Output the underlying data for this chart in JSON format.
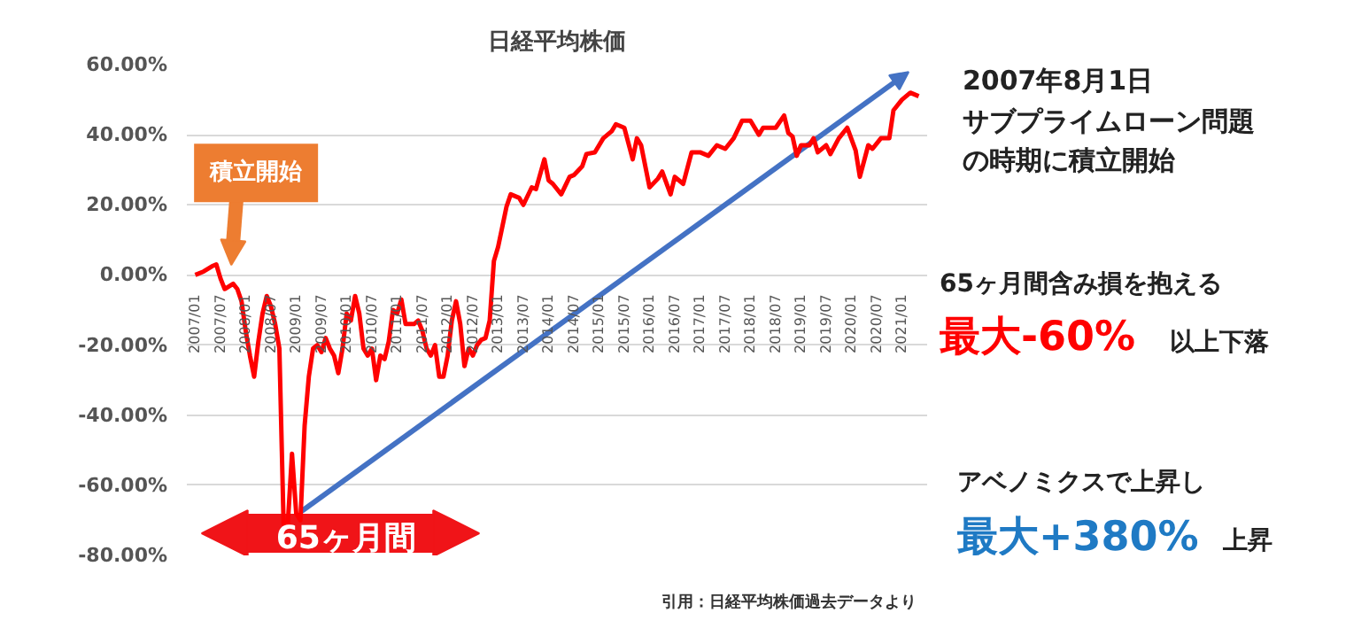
{
  "chart_data": {
    "type": "line",
    "title": "日経平均株価",
    "xlim": [
      "2006-11",
      "2021-07"
    ],
    "ylim": [
      -80,
      60
    ],
    "xticks": [
      {
        "value": "2007-01",
        "label": "2007/01"
      },
      {
        "value": "2007-07",
        "label": "2007/07"
      },
      {
        "value": "2008-01",
        "label": "2008/01"
      },
      {
        "value": "2008-07",
        "label": "2008/07"
      },
      {
        "value": "2009-01",
        "label": "2009/01"
      },
      {
        "value": "2009-07",
        "label": "2009/07"
      },
      {
        "value": "2010-01",
        "label": "2010/01"
      },
      {
        "value": "2010-07",
        "label": "2010/07"
      },
      {
        "value": "2011-01",
        "label": "2011/01"
      },
      {
        "value": "2011-07",
        "label": "2011/07"
      },
      {
        "value": "2012-01",
        "label": "2012/01"
      },
      {
        "value": "2012-07",
        "label": "2012/07"
      },
      {
        "value": "2013-01",
        "label": "2013/01"
      },
      {
        "value": "2013-07",
        "label": "2013/07"
      },
      {
        "value": "2014-01",
        "label": "2014/01"
      },
      {
        "value": "2014-07",
        "label": "2014/07"
      },
      {
        "value": "2015-01",
        "label": "2015/01"
      },
      {
        "value": "2015-07",
        "label": "2015/07"
      },
      {
        "value": "2016-01",
        "label": "2016/01"
      },
      {
        "value": "2016-07",
        "label": "2016/07"
      },
      {
        "value": "2017-01",
        "label": "2017/01"
      },
      {
        "value": "2017-07",
        "label": "2017/07"
      },
      {
        "value": "2018-01",
        "label": "2018/01"
      },
      {
        "value": "2018-07",
        "label": "2018/07"
      },
      {
        "value": "2019-01",
        "label": "2019/01"
      },
      {
        "value": "2019-07",
        "label": "2019/07"
      },
      {
        "value": "2020-01",
        "label": "2020/01"
      },
      {
        "value": "2020-07",
        "label": "2020/07"
      },
      {
        "value": "2021-01",
        "label": "2021/01"
      }
    ],
    "yticks": [
      {
        "value": 60,
        "label": "60.00%"
      },
      {
        "value": 40,
        "label": "40.00%"
      },
      {
        "value": 20,
        "label": "20.00%"
      },
      {
        "value": 0,
        "label": "0.00%"
      },
      {
        "value": -20,
        "label": "-20.00%"
      },
      {
        "value": -40,
        "label": "-40.00%"
      },
      {
        "value": -60,
        "label": "-60.00%"
      },
      {
        "value": -80,
        "label": "-80.00%"
      }
    ],
    "grid": "y",
    "series": [
      {
        "color": "#ff0000",
        "x": [
          "2007-01",
          "2007-03",
          "2007-05",
          "2007-06",
          "2007-07",
          "2007-08",
          "2007-10",
          "2007-11",
          "2007-12",
          "2008-01",
          "2008-02",
          "2008-03",
          "2008-04",
          "2008-05",
          "2008-06",
          "2008-07",
          "2008-08",
          "2008-09",
          "2008-10",
          "2008-11",
          "2008-12",
          "2009-01",
          "2009-02",
          "2009-03",
          "2009-04",
          "2009-05",
          "2009-06",
          "2009-07",
          "2009-08",
          "2009-09",
          "2009-10",
          "2009-11",
          "2009-12",
          "2010-01",
          "2010-02",
          "2010-03",
          "2010-04",
          "2010-05",
          "2010-06",
          "2010-07",
          "2010-08",
          "2010-09",
          "2010-10",
          "2010-11",
          "2010-12",
          "2011-01",
          "2011-02",
          "2011-03",
          "2011-04",
          "2011-05",
          "2011-06",
          "2011-07",
          "2011-08",
          "2011-09",
          "2011-10",
          "2011-11",
          "2011-12",
          "2012-01",
          "2012-02",
          "2012-03",
          "2012-04",
          "2012-05",
          "2012-06",
          "2012-07",
          "2012-08",
          "2012-09",
          "2012-10",
          "2012-11",
          "2012-12",
          "2013-01",
          "2013-03",
          "2013-04",
          "2013-06",
          "2013-07",
          "2013-09",
          "2013-10",
          "2013-12",
          "2014-01",
          "2014-02",
          "2014-04",
          "2014-06",
          "2014-07",
          "2014-09",
          "2014-10",
          "2014-12",
          "2015-02",
          "2015-04",
          "2015-05",
          "2015-07",
          "2015-09",
          "2015-10",
          "2015-11",
          "2016-01",
          "2016-03",
          "2016-04",
          "2016-06",
          "2016-07",
          "2016-09",
          "2016-11",
          "2017-01",
          "2017-03",
          "2017-05",
          "2017-07",
          "2017-09",
          "2017-11",
          "2018-01",
          "2018-03",
          "2018-04",
          "2018-07",
          "2018-09",
          "2018-10",
          "2018-11",
          "2018-12",
          "2019-01",
          "2019-03",
          "2019-04",
          "2019-05",
          "2019-07",
          "2019-08",
          "2019-10",
          "2019-12",
          "2020-02",
          "2020-03",
          "2020-05",
          "2020-06",
          "2020-08",
          "2020-10",
          "2020-11",
          "2021-01",
          "2021-03",
          "2021-05"
        ],
        "values": [
          0,
          1,
          2.5,
          3,
          -1,
          -4,
          -2.5,
          -4,
          -7.5,
          -16,
          -23,
          -29,
          -19,
          -11,
          -6,
          -9,
          -14,
          -21,
          -71,
          -71,
          -51,
          -68,
          -70,
          -43,
          -29,
          -21,
          -20,
          -22,
          -18,
          -21,
          -23,
          -28,
          -21,
          -11,
          -13,
          -6,
          -11,
          -21,
          -23,
          -21,
          -30,
          -23,
          -24,
          -19,
          -10,
          -11,
          -7,
          -14,
          -14,
          -14,
          -13,
          -16,
          -21,
          -23,
          -20,
          -29,
          -29,
          -23,
          -13,
          -7.5,
          -14,
          -26,
          -21,
          -23,
          -20,
          -18.5,
          -18,
          -13,
          4,
          8,
          19.5,
          23,
          22,
          20,
          25,
          24.5,
          33,
          27,
          26,
          23,
          28,
          28.5,
          31,
          34.5,
          35,
          39,
          41,
          43,
          42,
          33,
          39,
          37,
          25,
          27.5,
          29.5,
          23,
          28,
          26,
          35,
          35,
          34,
          37,
          36,
          39,
          44,
          44,
          40,
          42,
          42,
          45.5,
          40.5,
          39.5,
          34,
          37,
          37,
          39,
          35,
          37,
          34.5,
          39,
          42,
          35.5,
          28,
          37,
          36,
          39,
          39,
          47,
          50,
          52,
          51
        ]
      }
    ],
    "annotations": [
      "積立開始",
      "65ヶ月間",
      "2007年8月1日",
      "サブプライムローン問題",
      "の時期に積立開始",
      "65ヶ月間含み損を抱える",
      "最大-60%",
      "以上下落",
      "アベノミクスで上昇し",
      "最大+380%",
      "上昇",
      "引用：日経平均株価過去データより"
    ]
  }
}
